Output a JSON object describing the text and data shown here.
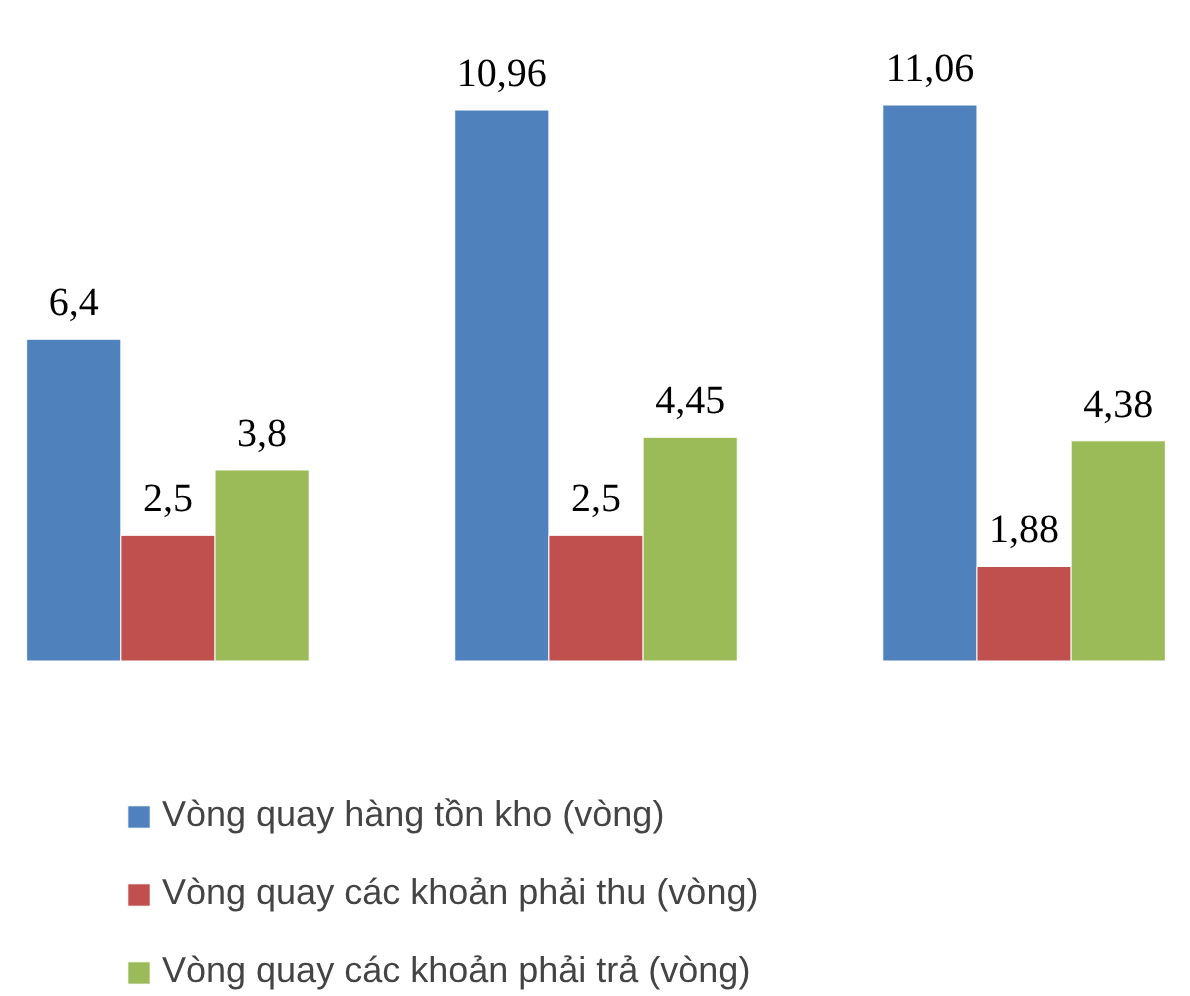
{
  "chart_data": {
    "type": "bar",
    "categories": [
      null,
      null,
      null
    ],
    "legend": "bottom",
    "series": [
      {
        "name": "Vòng quay hàng tồn kho (vòng)",
        "color": "#4f81bd",
        "values": [
          6.4,
          10.96,
          11.06
        ],
        "value_labels": [
          "6,4",
          "10,96",
          "11,06"
        ]
      },
      {
        "name": "Vòng quay các khoản phải thu (vòng)",
        "color": "#c0504d",
        "values": [
          2.5,
          2.5,
          1.88
        ],
        "value_labels": [
          "2,5",
          "2,5",
          "1,88"
        ]
      },
      {
        "name": "Vòng quay các khoản phải trả (vòng)",
        "color": "#9bbb59",
        "values": [
          3.8,
          4.45,
          4.38
        ],
        "value_labels": [
          "3,8",
          "4,45",
          "4,38"
        ]
      }
    ]
  }
}
